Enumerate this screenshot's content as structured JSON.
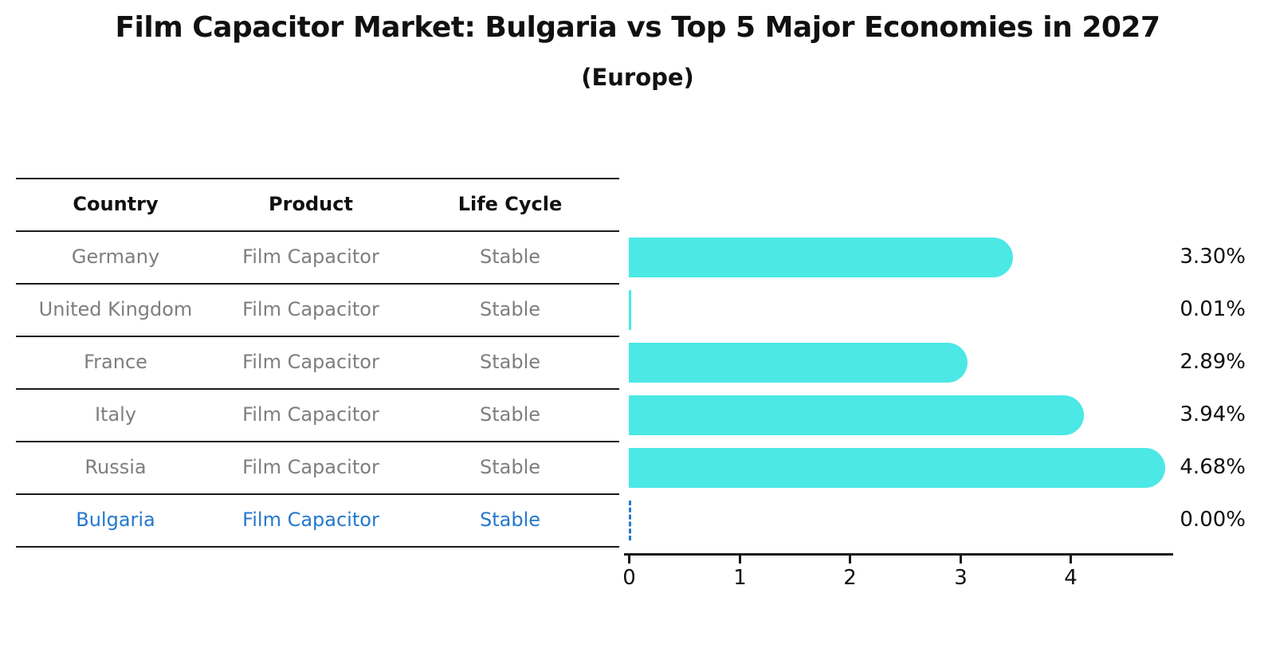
{
  "title": "Film Capacitor Market: Bulgaria vs Top 5 Major Economies in 2027",
  "subtitle": "(Europe)",
  "table": {
    "headers": [
      "Country",
      "Product",
      "Life Cycle"
    ],
    "rows": [
      {
        "country": "Germany",
        "product": "Film Capacitor",
        "life_cycle": "Stable",
        "highlight": false
      },
      {
        "country": "United Kingdom",
        "product": "Film Capacitor",
        "life_cycle": "Stable",
        "highlight": false
      },
      {
        "country": "France",
        "product": "Film Capacitor",
        "life_cycle": "Stable",
        "highlight": false
      },
      {
        "country": "Italy",
        "product": "Film Capacitor",
        "life_cycle": "Stable",
        "highlight": false
      },
      {
        "country": "Russia",
        "product": "Film Capacitor",
        "life_cycle": "Stable",
        "highlight": true
      }
    ],
    "highlight_row": {
      "country": "Bulgaria",
      "product": "Film Capacitor",
      "life_cycle": "Stable"
    }
  },
  "chart_data": {
    "type": "bar",
    "orientation": "horizontal",
    "title": "Film Capacitor Market: Bulgaria vs Top 5 Major Economies in 2027",
    "subtitle": "(Europe)",
    "categories": [
      "Germany",
      "United Kingdom",
      "France",
      "Italy",
      "Russia",
      "Bulgaria"
    ],
    "values": [
      3.3,
      0.01,
      2.89,
      3.94,
      4.68,
      0.0
    ],
    "value_labels": [
      "3.30%",
      "0.01%",
      "2.89%",
      "3.94%",
      "4.68%",
      "0.00%"
    ],
    "xticks": [
      0,
      1,
      2,
      3,
      4
    ],
    "xlim": [
      0,
      4.93
    ],
    "xlabel": "",
    "ylabel": "",
    "grid": false,
    "legend": false,
    "bar_color": "#4BE8E5",
    "highlight_color": "#2478CD"
  },
  "colors": {
    "bar": "#4BE8E5",
    "highlight_text": "#2478CD",
    "row_text": "#7E7E7E",
    "header_text": "#111111",
    "line": "#1A1A1A",
    "background": "#FFFFFF"
  }
}
